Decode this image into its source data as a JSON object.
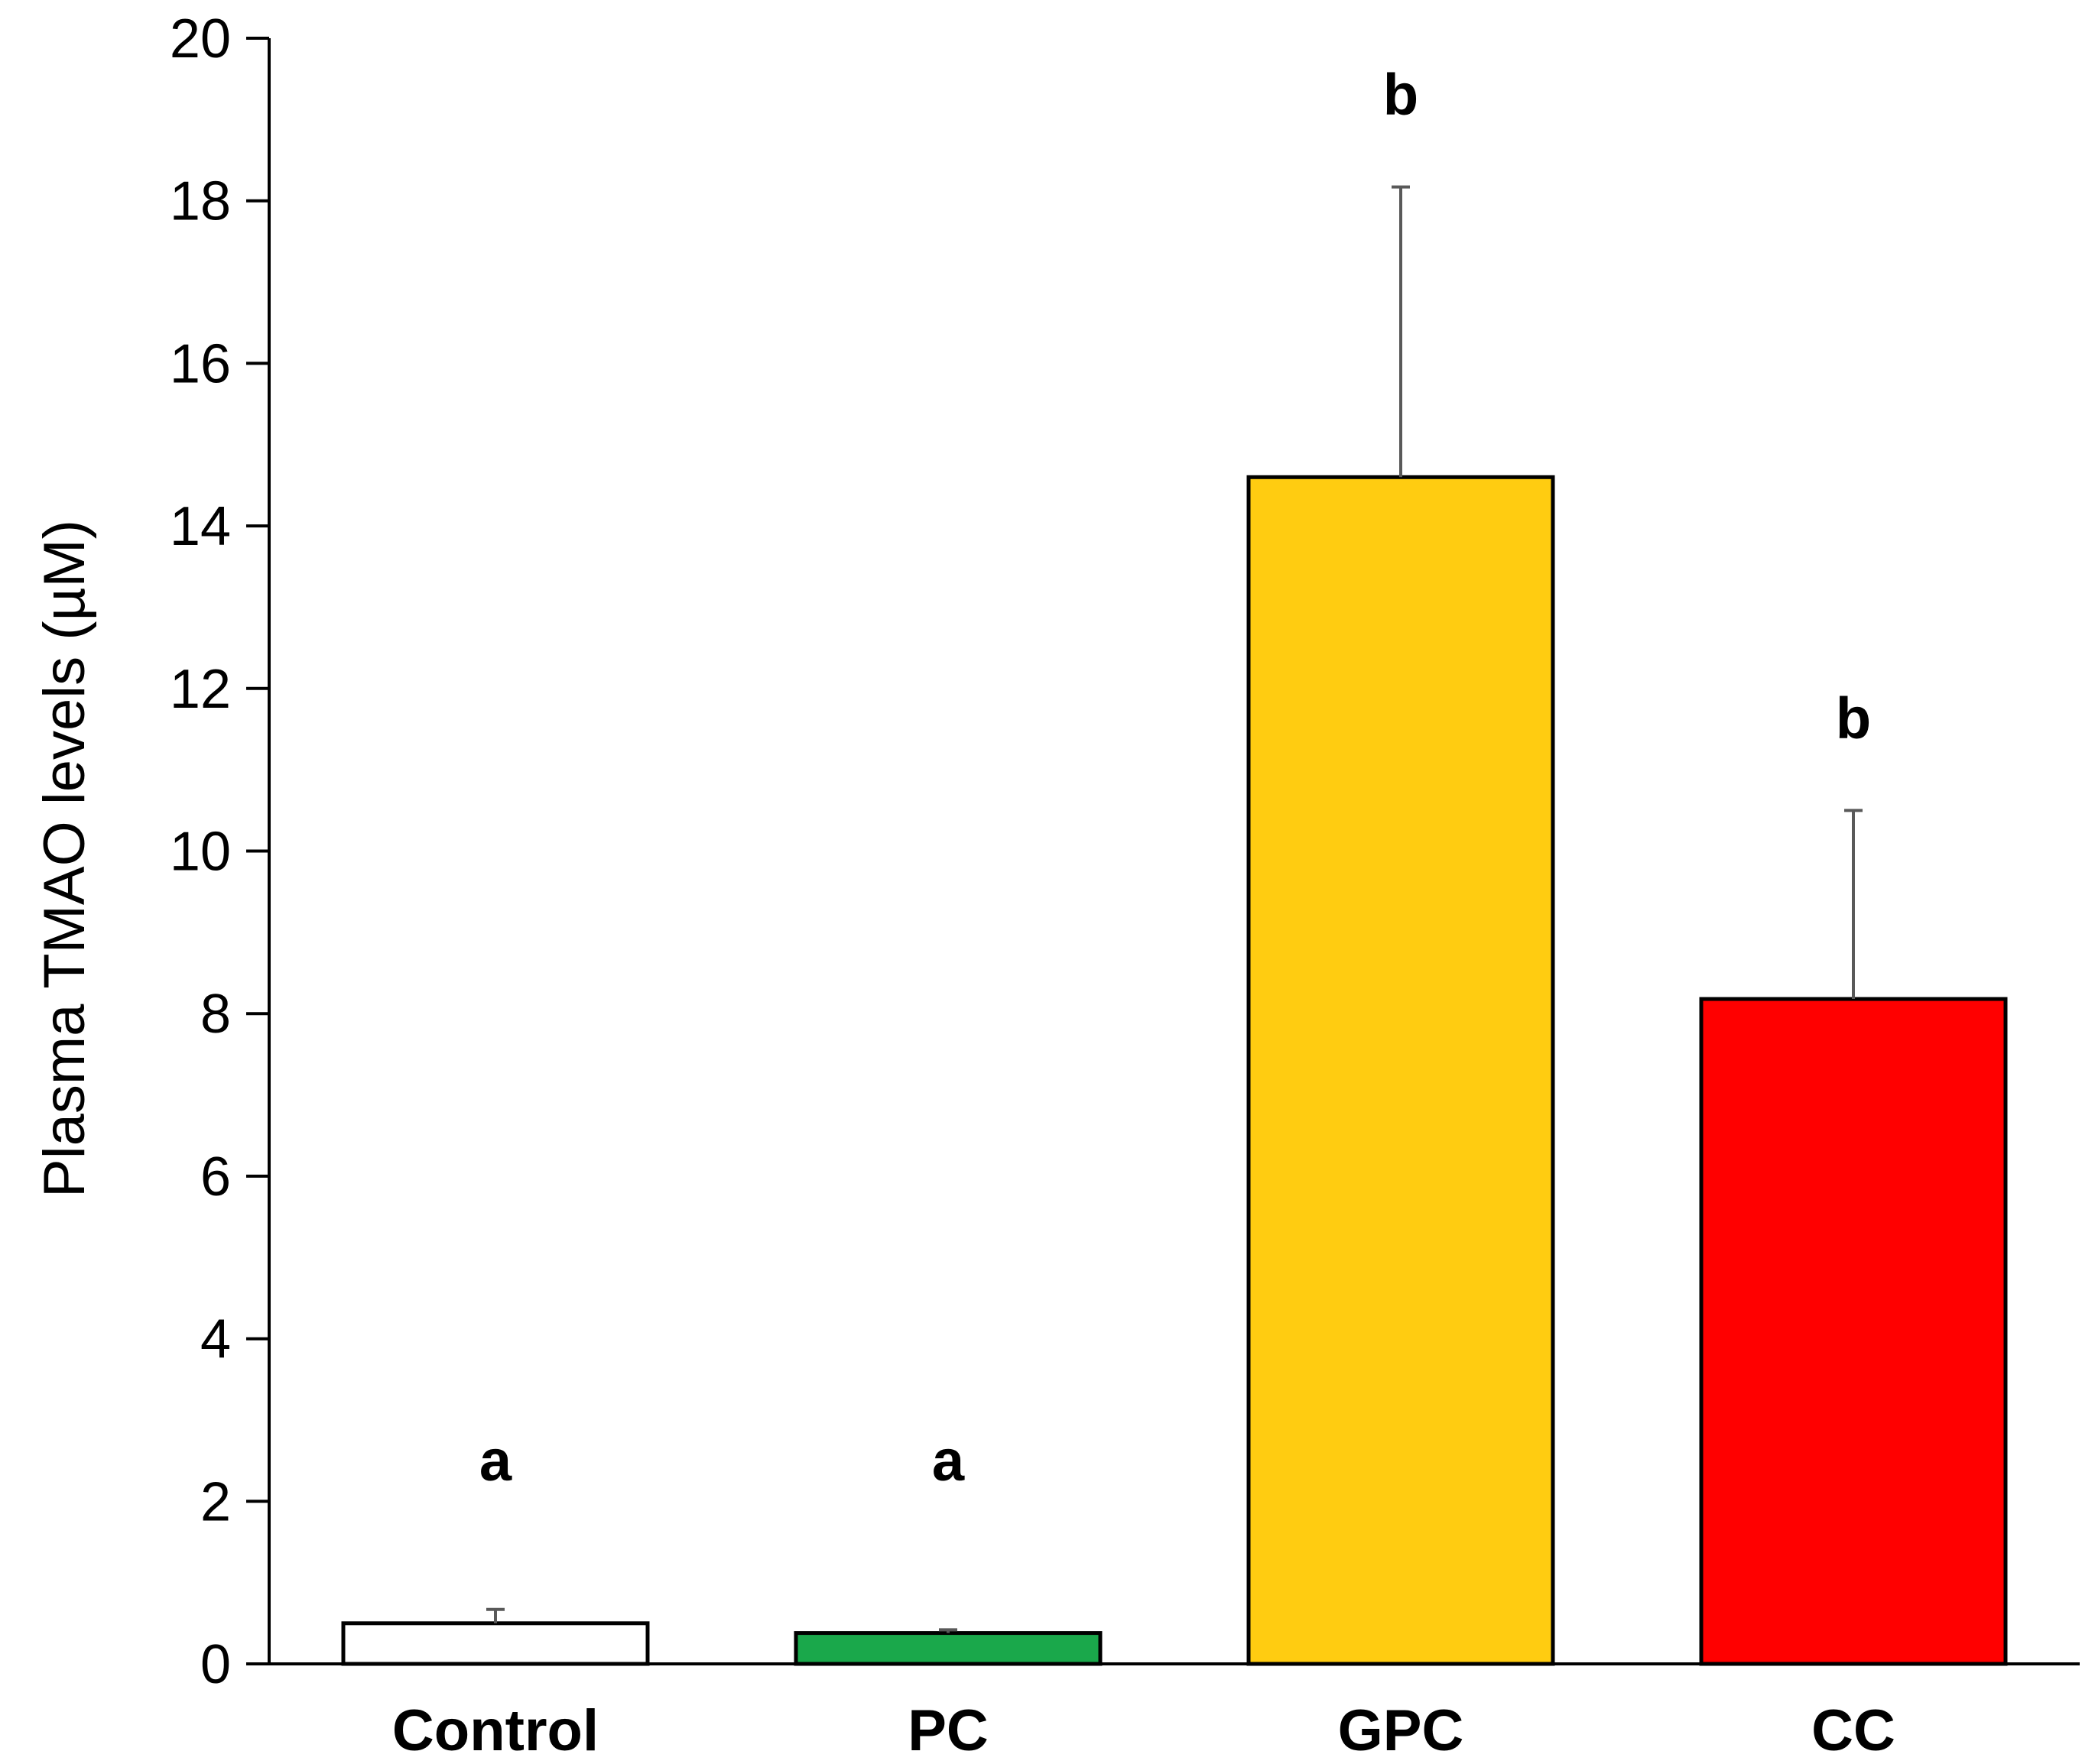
{
  "chart_data": {
    "type": "bar",
    "title": "",
    "xlabel": "",
    "ylabel": "Plasma TMAO levels (µM)",
    "ylim": [
      0,
      20
    ],
    "yticks": [
      0,
      2,
      4,
      6,
      8,
      10,
      12,
      14,
      16,
      18,
      20
    ],
    "ytick_labels": [
      "0",
      "2",
      "4",
      "6",
      "8",
      "10",
      "12",
      "14",
      "16",
      "18",
      "20"
    ],
    "categories": [
      "Control",
      "PC",
      "GPC",
      "CC"
    ],
    "values": [
      0.5,
      0.38,
      14.6,
      8.18
    ],
    "errors": [
      0.17,
      0.04,
      3.57,
      2.32
    ],
    "significance_letters": [
      "a",
      "a",
      "b",
      "b"
    ],
    "colors": [
      "#ffffff",
      "#1aa84b",
      "#ffcc11",
      "#ff0000"
    ],
    "bar_outline_color": "#000000",
    "error_bar_color": "#595959",
    "grid": false,
    "legend": "none"
  }
}
